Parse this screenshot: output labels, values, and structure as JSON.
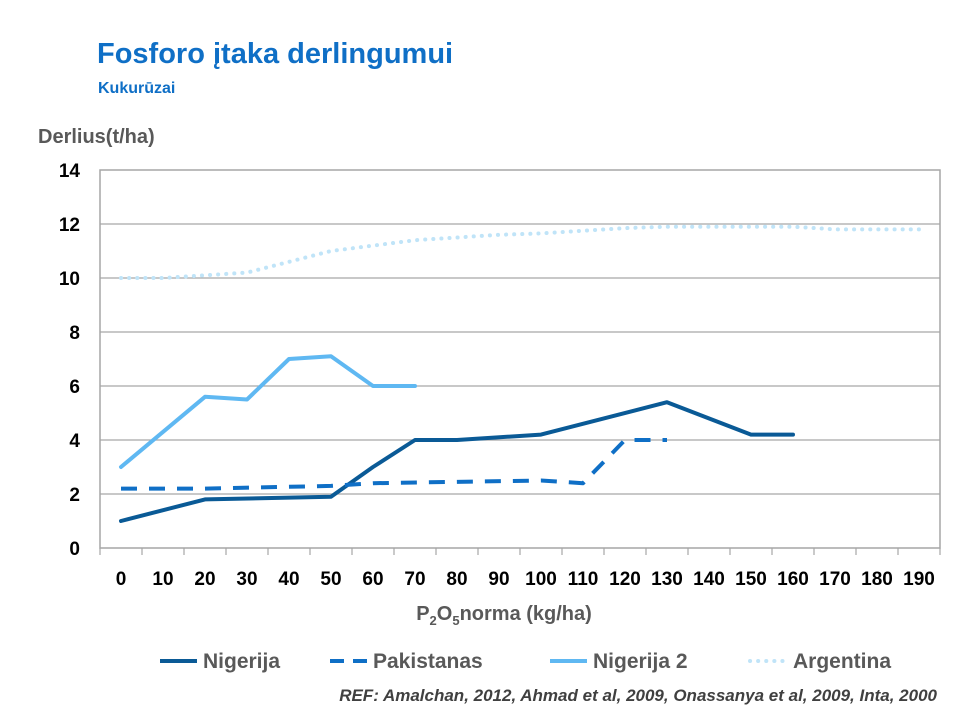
{
  "chart_data": {
    "type": "line",
    "title": "Fosforo įtaka derlingumui",
    "subtitle": "Kukurūzai",
    "ylabel": "Derlius(t/ha)",
    "xlabel": "norma (kg/ha)",
    "xlabel_formula": {
      "p": "P",
      "p_sub": "2",
      "o": "O",
      "o_sub": "5"
    },
    "ylim": [
      0,
      14
    ],
    "yticks": [
      0,
      2,
      4,
      6,
      8,
      10,
      12,
      14
    ],
    "categories": [
      "0",
      "10",
      "20",
      "30",
      "40",
      "50",
      "60",
      "70",
      "80",
      "90",
      "100",
      "110",
      "120",
      "130",
      "140",
      "150",
      "160",
      "170",
      "180",
      "190"
    ],
    "grid": "horizontal",
    "legend_position": "bottom",
    "series": [
      {
        "name": "Nigerija",
        "style": "solid",
        "color": "#0a5a96",
        "points": [
          [
            0,
            1.0
          ],
          [
            20,
            1.8
          ],
          [
            50,
            1.9
          ],
          [
            60,
            3.0
          ],
          [
            70,
            4.0
          ],
          [
            80,
            4.0
          ],
          [
            100,
            4.2
          ],
          [
            130,
            5.4
          ],
          [
            150,
            4.2
          ],
          [
            160,
            4.2
          ]
        ]
      },
      {
        "name": "Pakistanas",
        "style": "dashed",
        "color": "#0f6fc6",
        "points": [
          [
            0,
            2.2
          ],
          [
            20,
            2.2
          ],
          [
            50,
            2.3
          ],
          [
            60,
            2.4
          ],
          [
            100,
            2.5
          ],
          [
            110,
            2.4
          ],
          [
            120,
            4.0
          ],
          [
            130,
            4.0
          ]
        ]
      },
      {
        "name": "Nigerija 2",
        "style": "solid",
        "color": "#5fb8f2",
        "points": [
          [
            0,
            3.0
          ],
          [
            20,
            5.6
          ],
          [
            30,
            5.5
          ],
          [
            40,
            7.0
          ],
          [
            50,
            7.1
          ],
          [
            60,
            6.0
          ],
          [
            70,
            6.0
          ]
        ]
      },
      {
        "name": "Argentina",
        "style": "dotted",
        "color": "#c0e4f8",
        "points": [
          [
            0,
            10.0
          ],
          [
            10,
            10.0
          ],
          [
            20,
            10.1
          ],
          [
            30,
            10.2
          ],
          [
            40,
            10.6
          ],
          [
            50,
            11.0
          ],
          [
            60,
            11.2
          ],
          [
            70,
            11.4
          ],
          [
            80,
            11.5
          ],
          [
            90,
            11.6
          ],
          [
            100,
            11.65
          ],
          [
            110,
            11.75
          ],
          [
            120,
            11.85
          ],
          [
            130,
            11.9
          ],
          [
            140,
            11.9
          ],
          [
            150,
            11.9
          ],
          [
            160,
            11.9
          ],
          [
            170,
            11.8
          ],
          [
            180,
            11.8
          ],
          [
            190,
            11.8
          ]
        ]
      }
    ]
  },
  "reference": "REF: Amalchan, 2012, Ahmad et al, 2009, Onassanya et al, 2009, Inta, 2000"
}
